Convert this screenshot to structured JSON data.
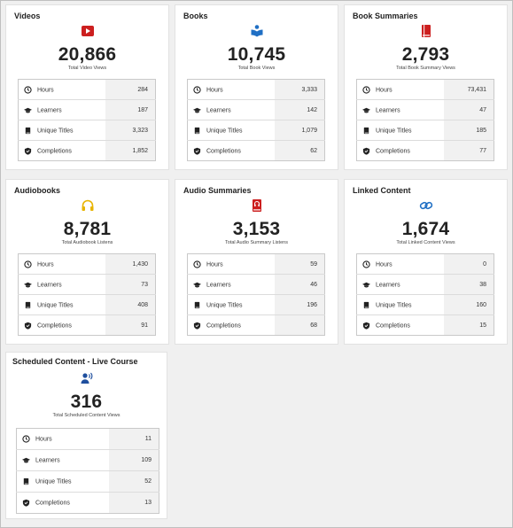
{
  "cards": [
    {
      "title": "Videos",
      "total": "20,866",
      "total_label": "Total Video Views",
      "icon": "video-play-icon",
      "icon_color": "#cc1f1f",
      "rows": [
        {
          "label": "Hours",
          "value": "284"
        },
        {
          "label": "Learners",
          "value": "187"
        },
        {
          "label": "Unique Titles",
          "value": "3,323"
        },
        {
          "label": "Completions",
          "value": "1,852"
        }
      ]
    },
    {
      "title": "Books",
      "total": "10,745",
      "total_label": "Total Book Views",
      "icon": "book-reader-icon",
      "icon_color": "#1f6fc4",
      "rows": [
        {
          "label": "Hours",
          "value": "3,333"
        },
        {
          "label": "Learners",
          "value": "142"
        },
        {
          "label": "Unique Titles",
          "value": "1,079"
        },
        {
          "label": "Completions",
          "value": "62"
        }
      ]
    },
    {
      "title": "Book Summaries",
      "total": "2,793",
      "total_label": "Total Book Summary Views",
      "icon": "book-summary-icon",
      "icon_color": "#cc1f1f",
      "rows": [
        {
          "label": "Hours",
          "value": "73,431"
        },
        {
          "label": "Learners",
          "value": "47"
        },
        {
          "label": "Unique Titles",
          "value": "185"
        },
        {
          "label": "Completions",
          "value": "77"
        }
      ]
    },
    {
      "title": "Audiobooks",
      "total": "8,781",
      "total_label": "Total Audiobook Listens",
      "icon": "headphones-icon",
      "icon_color": "#e8b400",
      "rows": [
        {
          "label": "Hours",
          "value": "1,430"
        },
        {
          "label": "Learners",
          "value": "73"
        },
        {
          "label": "Unique Titles",
          "value": "408"
        },
        {
          "label": "Completions",
          "value": "91"
        }
      ]
    },
    {
      "title": "Audio Summaries",
      "total": "3,153",
      "total_label": "Total Audio Summary Listens",
      "icon": "audio-summary-icon",
      "icon_color": "#cc1f1f",
      "rows": [
        {
          "label": "Hours",
          "value": "59"
        },
        {
          "label": "Learners",
          "value": "46"
        },
        {
          "label": "Unique Titles",
          "value": "196"
        },
        {
          "label": "Completions",
          "value": "68"
        }
      ]
    },
    {
      "title": "Linked Content",
      "total": "1,674",
      "total_label": "Total Linked Content Views",
      "icon": "link-icon",
      "icon_color": "#1f6fc4",
      "rows": [
        {
          "label": "Hours",
          "value": "0"
        },
        {
          "label": "Learners",
          "value": "38"
        },
        {
          "label": "Unique Titles",
          "value": "160"
        },
        {
          "label": "Completions",
          "value": "15"
        }
      ]
    },
    {
      "title": "Scheduled Content - Live Course",
      "total": "316",
      "total_label": "Total Scheduled Content Views",
      "icon": "live-course-speaker-icon",
      "icon_color": "#1f4f9e",
      "rows": [
        {
          "label": "Hours",
          "value": "11"
        },
        {
          "label": "Learners",
          "value": "109"
        },
        {
          "label": "Unique Titles",
          "value": "52"
        },
        {
          "label": "Completions",
          "value": "13"
        }
      ]
    }
  ]
}
